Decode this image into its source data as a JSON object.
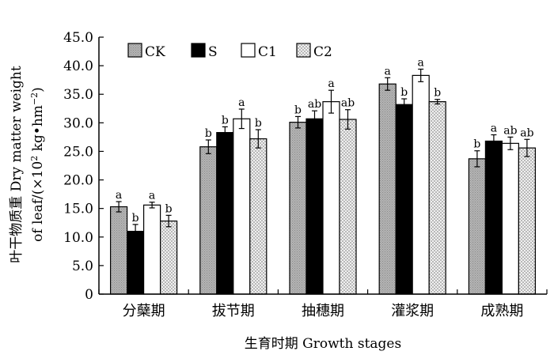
{
  "chart_data": {
    "type": "bar",
    "categories": [
      "分蘖期",
      "拔节期",
      "抽穗期",
      "灌浆期",
      "成熟期"
    ],
    "xlabel": "生育时期  Growth stages",
    "ylabel": {
      "line1": "叶干物质重  Dry matter weight",
      "line2_prefix": "of leaf/(×10",
      "line2_exp": "2",
      "line2_mid": " kg•hm",
      "line2_exp2": "−2",
      "line2_suffix": ")"
    },
    "ylim": [
      0,
      45
    ],
    "yticks": [
      "0",
      "5.0",
      "10.0",
      "15.0",
      "20.0",
      "25.0",
      "30.0",
      "35.0",
      "40.0",
      "45.0"
    ],
    "legend_position": "top-left",
    "series": [
      {
        "name": "CK",
        "color": "#a6a6a6",
        "pattern": "dots",
        "values": [
          15.3,
          25.8,
          30.1,
          36.8,
          23.7
        ],
        "errors": [
          0.9,
          1.2,
          1.0,
          1.1,
          1.4
        ],
        "letters": [
          "a",
          "b",
          "b",
          "a",
          "b"
        ]
      },
      {
        "name": "S",
        "color": "#000000",
        "pattern": "solid",
        "values": [
          11.0,
          28.3,
          30.7,
          33.2,
          26.8
        ],
        "errors": [
          1.2,
          1.0,
          1.4,
          1.0,
          1.1
        ],
        "letters": [
          "b",
          "b",
          "ab",
          "b",
          "a"
        ]
      },
      {
        "name": "C1",
        "color": "#ffffff",
        "pattern": "none",
        "values": [
          15.6,
          30.7,
          33.7,
          38.3,
          26.4
        ],
        "errors": [
          0.5,
          1.7,
          2.0,
          1.1,
          1.1
        ],
        "letters": [
          "a",
          "a",
          "a",
          "a",
          "ab"
        ]
      },
      {
        "name": "C2",
        "color": "#e2e2e2",
        "pattern": "checker",
        "values": [
          12.8,
          27.2,
          30.6,
          33.7,
          25.6
        ],
        "errors": [
          1.0,
          1.6,
          1.7,
          0.4,
          1.5
        ],
        "letters": [
          "b",
          "b",
          "ab",
          "b",
          "ab"
        ]
      }
    ]
  }
}
